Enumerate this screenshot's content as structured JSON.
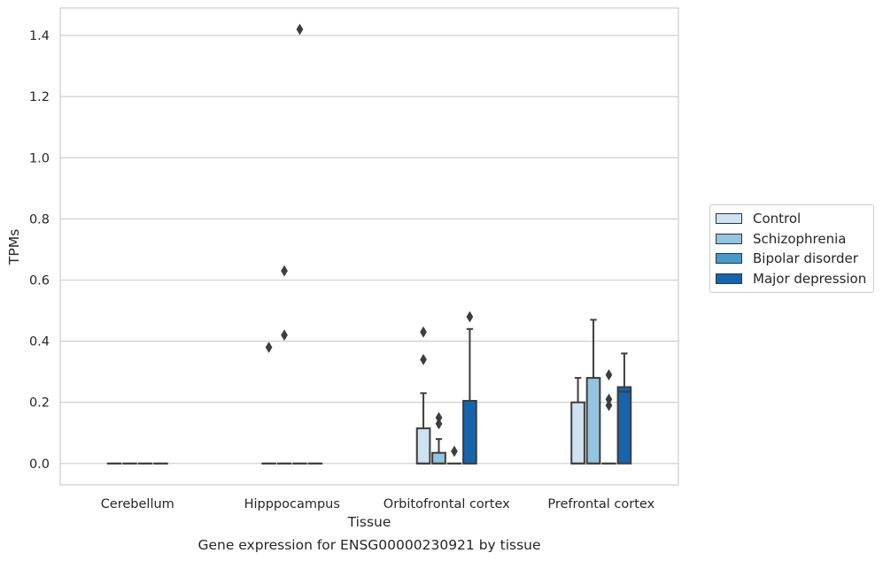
{
  "caption": "Gene expression for ENSG00000230921 by tissue",
  "chart_data": {
    "type": "box",
    "xlabel": "Tissue",
    "ylabel": "TPMs",
    "ylim": [
      -0.07,
      1.49
    ],
    "yticks": [
      0.0,
      0.2,
      0.4,
      0.6,
      0.8,
      1.0,
      1.2,
      1.4
    ],
    "ytick_labels": [
      "0.0",
      "0.2",
      "0.4",
      "0.6",
      "0.8",
      "1.0",
      "1.2",
      "1.4"
    ],
    "grid": true,
    "legend_position": "right",
    "categories": [
      "Cerebellum",
      "Hipppocampus",
      "Orbitofrontal cortex",
      "Prefrontal cortex"
    ],
    "series": [
      {
        "name": "Control",
        "color": "#d0e1f2",
        "boxes": [
          {
            "q1": 0,
            "median": 0,
            "q3": 0,
            "whisker_low": 0,
            "whisker_high": 0,
            "outliers": []
          },
          {
            "q1": 0,
            "median": 0,
            "q3": 0,
            "whisker_low": 0,
            "whisker_high": 0,
            "outliers": [
              0.38
            ]
          },
          {
            "q1": 0,
            "median": 0,
            "q3": 0.115,
            "whisker_low": 0,
            "whisker_high": 0.23,
            "outliers": [
              0.34,
              0.43
            ]
          },
          {
            "q1": 0,
            "median": 0,
            "q3": 0.2,
            "whisker_low": 0,
            "whisker_high": 0.28,
            "outliers": []
          }
        ]
      },
      {
        "name": "Schizophrenia",
        "color": "#94c4df",
        "boxes": [
          {
            "q1": 0,
            "median": 0,
            "q3": 0,
            "whisker_low": 0,
            "whisker_high": 0,
            "outliers": []
          },
          {
            "q1": 0,
            "median": 0,
            "q3": 0,
            "whisker_low": 0,
            "whisker_high": 0,
            "outliers": [
              0.42,
              0.63
            ]
          },
          {
            "q1": 0,
            "median": 0,
            "q3": 0.035,
            "whisker_low": 0,
            "whisker_high": 0.08,
            "outliers": [
              0.13,
              0.15
            ]
          },
          {
            "q1": 0,
            "median": 0,
            "q3": 0.28,
            "whisker_low": 0,
            "whisker_high": 0.47,
            "outliers": []
          }
        ]
      },
      {
        "name": "Bipolar disorder",
        "color": "#4a98c9",
        "boxes": [
          {
            "q1": 0,
            "median": 0,
            "q3": 0,
            "whisker_low": 0,
            "whisker_high": 0,
            "outliers": []
          },
          {
            "q1": 0,
            "median": 0,
            "q3": 0,
            "whisker_low": 0,
            "whisker_high": 0,
            "outliers": [
              1.42
            ]
          },
          {
            "q1": 0,
            "median": 0,
            "q3": 0,
            "whisker_low": 0,
            "whisker_high": 0,
            "outliers": [
              0.04
            ]
          },
          {
            "q1": 0,
            "median": 0,
            "q3": 0,
            "whisker_low": 0,
            "whisker_high": 0,
            "outliers": [
              0.19,
              0.21,
              0.29
            ]
          }
        ]
      },
      {
        "name": "Major depression",
        "color": "#1764ab",
        "boxes": [
          {
            "q1": 0,
            "median": 0,
            "q3": 0,
            "whisker_low": 0,
            "whisker_high": 0,
            "outliers": []
          },
          {
            "q1": 0,
            "median": 0,
            "q3": 0,
            "whisker_low": 0,
            "whisker_high": 0,
            "outliers": []
          },
          {
            "q1": 0,
            "median": 0,
            "q3": 0.205,
            "whisker_low": 0,
            "whisker_high": 0.44,
            "outliers": [
              0.48
            ]
          },
          {
            "q1": 0,
            "median": 0.235,
            "q3": 0.25,
            "whisker_low": 0,
            "whisker_high": 0.36,
            "outliers": []
          }
        ]
      }
    ]
  }
}
